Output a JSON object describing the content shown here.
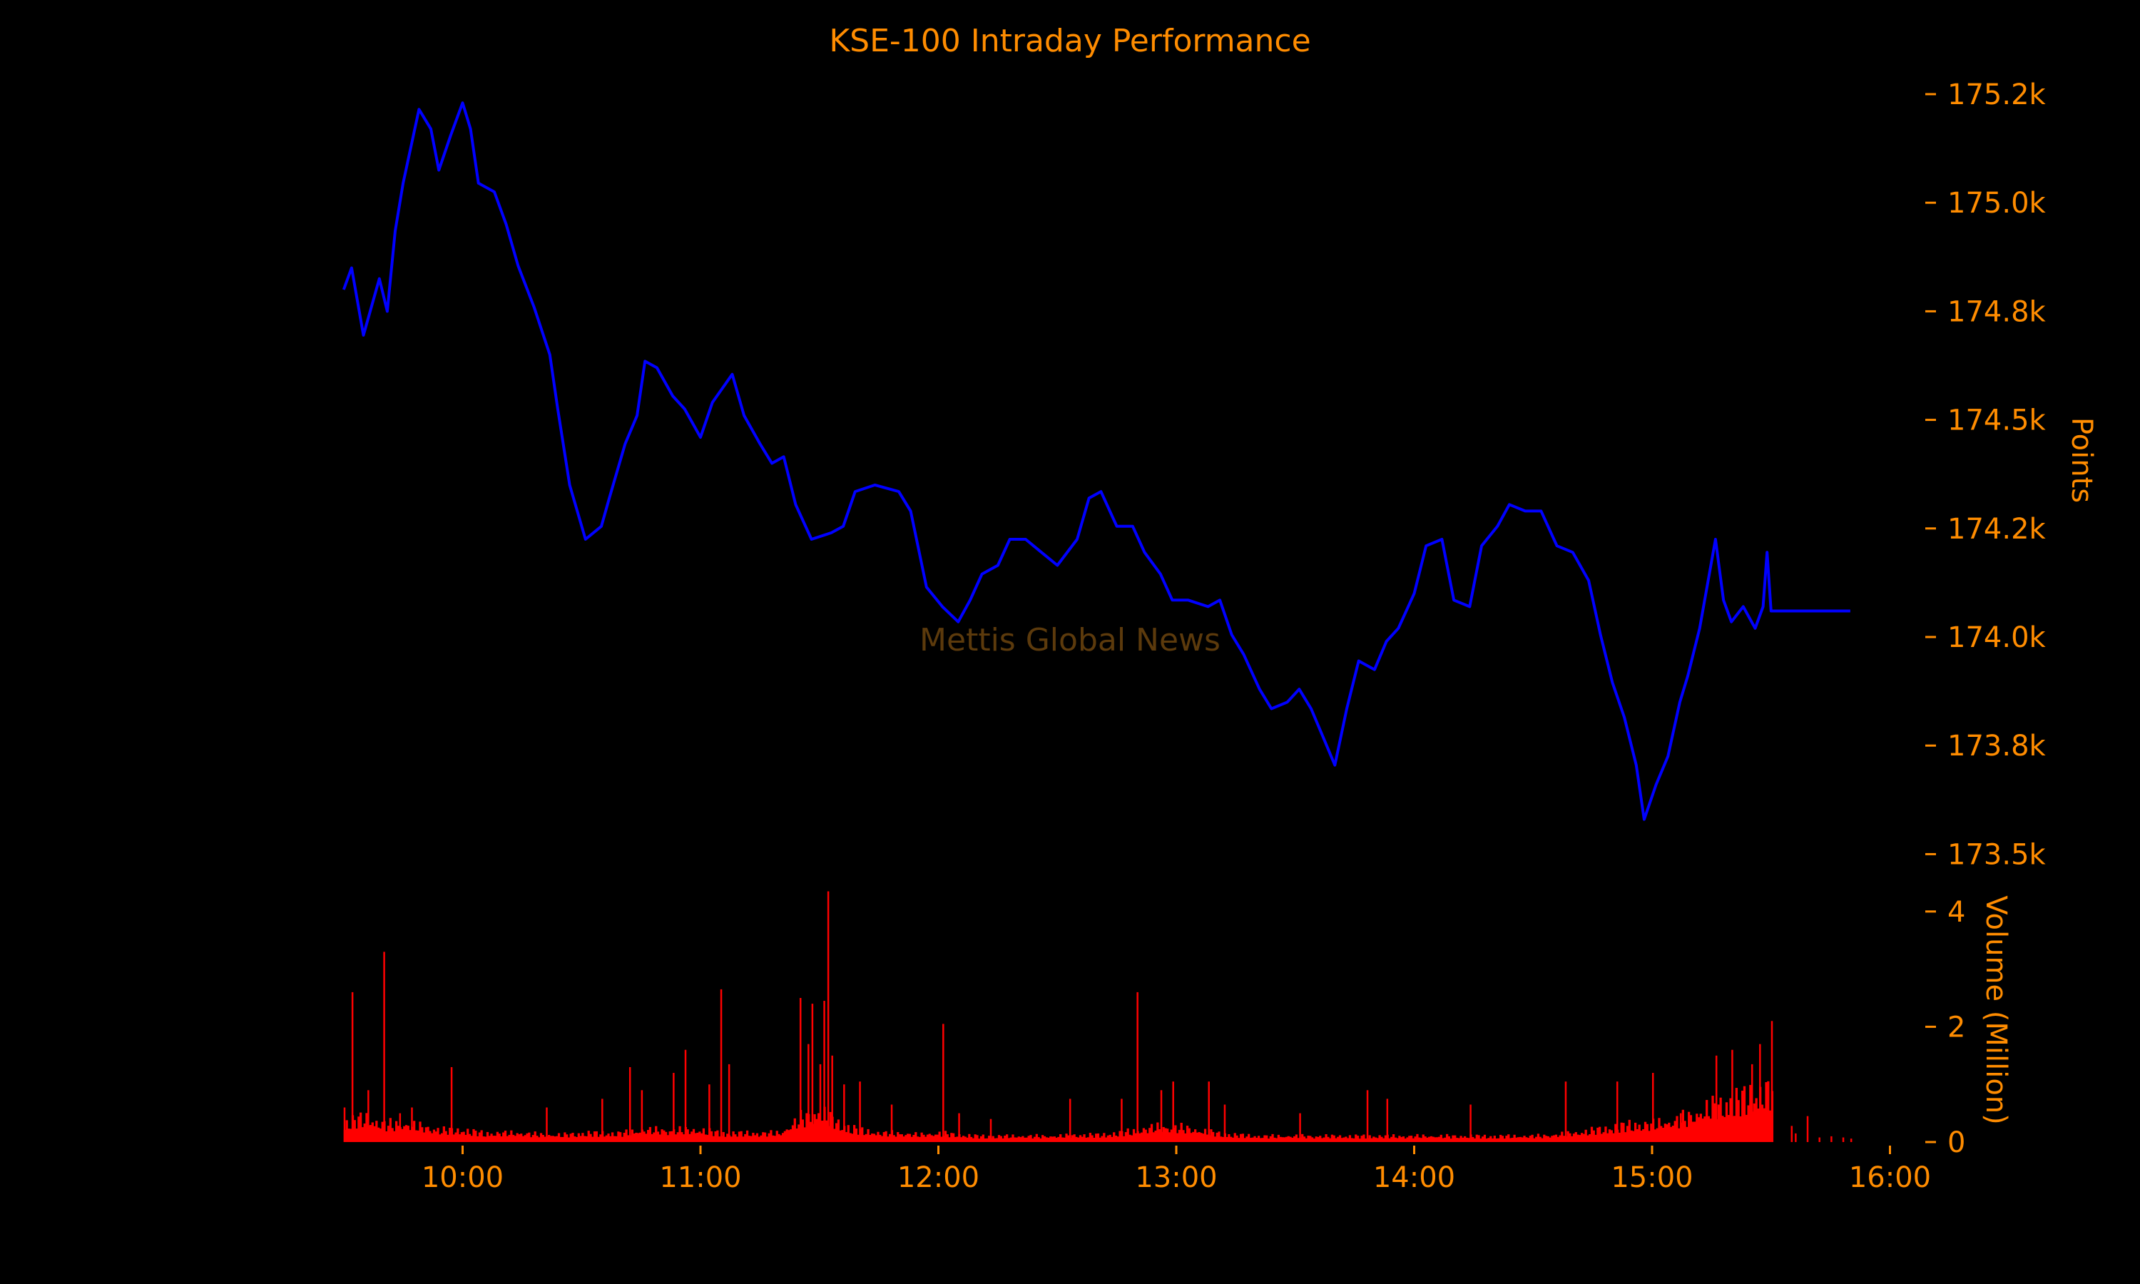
{
  "chart_data": {
    "type": "line",
    "title": "KSE-100 Intraday Performance",
    "watermark": "Mettis Global News",
    "xlabel": "",
    "ylabel": "Points",
    "y2label": "Volume (Million)",
    "x_ticks": [
      "10:00",
      "11:00",
      "12:00",
      "13:00",
      "14:00",
      "15:00",
      "16:00"
    ],
    "y_ticks": [
      {
        "value": 175250,
        "label": "175.2k"
      },
      {
        "value": 175000,
        "label": "175.0k"
      },
      {
        "value": 174750,
        "label": "174.8k"
      },
      {
        "value": 174500,
        "label": "174.5k"
      },
      {
        "value": 174250,
        "label": "174.2k"
      },
      {
        "value": 174000,
        "label": "174.0k"
      },
      {
        "value": 173750,
        "label": "173.8k"
      },
      {
        "value": 173500,
        "label": "173.5k"
      }
    ],
    "ylim": [
      173500,
      175250
    ],
    "volume_ticks": [
      {
        "value": 0,
        "label": "0"
      },
      {
        "value": 2,
        "label": "2"
      },
      {
        "value": 4,
        "label": "4"
      }
    ],
    "xlim": [
      "09:30",
      "16:00"
    ],
    "grid": false,
    "colors": {
      "background": "#000000",
      "text": "#ff8c00",
      "price": "#0000ff",
      "volume": "#ff0000",
      "watermark": "#5c3a0c"
    },
    "price": [
      [
        "09:30",
        174800
      ],
      [
        "09:32",
        174850
      ],
      [
        "09:35",
        174695
      ],
      [
        "09:39",
        174825
      ],
      [
        "09:41",
        174750
      ],
      [
        "09:43",
        174935
      ],
      [
        "09:45",
        175045
      ],
      [
        "09:49",
        175215
      ],
      [
        "09:52",
        175170
      ],
      [
        "09:54",
        175075
      ],
      [
        "09:57",
        175155
      ],
      [
        "10:00",
        175230
      ],
      [
        "10:02",
        175170
      ],
      [
        "10:04",
        175045
      ],
      [
        "10:08",
        175025
      ],
      [
        "10:11",
        174950
      ],
      [
        "10:14",
        174855
      ],
      [
        "10:18",
        174760
      ],
      [
        "10:22",
        174650
      ],
      [
        "10:24",
        174525
      ],
      [
        "10:27",
        174350
      ],
      [
        "10:31",
        174225
      ],
      [
        "10:35",
        174255
      ],
      [
        "10:37",
        174320
      ],
      [
        "10:41",
        174445
      ],
      [
        "10:44",
        174510
      ],
      [
        "10:46",
        174635
      ],
      [
        "10:49",
        174620
      ],
      [
        "10:53",
        174555
      ],
      [
        "10:56",
        174525
      ],
      [
        "11:00",
        174460
      ],
      [
        "11:03",
        174540
      ],
      [
        "11:08",
        174605
      ],
      [
        "11:11",
        174510
      ],
      [
        "11:15",
        174445
      ],
      [
        "11:18",
        174400
      ],
      [
        "11:21",
        174415
      ],
      [
        "11:24",
        174305
      ],
      [
        "11:28",
        174225
      ],
      [
        "11:33",
        174240
      ],
      [
        "11:36",
        174255
      ],
      [
        "11:39",
        174335
      ],
      [
        "11:44",
        174350
      ],
      [
        "11:50",
        174335
      ],
      [
        "11:53",
        174290
      ],
      [
        "11:57",
        174115
      ],
      [
        "12:01",
        174070
      ],
      [
        "12:05",
        174035
      ],
      [
        "12:08",
        174085
      ],
      [
        "12:11",
        174145
      ],
      [
        "12:15",
        174165
      ],
      [
        "12:18",
        174225
      ],
      [
        "12:22",
        174225
      ],
      [
        "12:26",
        174195
      ],
      [
        "12:30",
        174165
      ],
      [
        "12:35",
        174225
      ],
      [
        "12:38",
        174320
      ],
      [
        "12:41",
        174335
      ],
      [
        "12:45",
        174255
      ],
      [
        "12:49",
        174255
      ],
      [
        "12:52",
        174195
      ],
      [
        "12:56",
        174145
      ],
      [
        "12:59",
        174085
      ],
      [
        "13:03",
        174085
      ],
      [
        "13:08",
        174070
      ],
      [
        "13:11",
        174085
      ],
      [
        "13:14",
        174005
      ],
      [
        "13:17",
        173960
      ],
      [
        "13:21",
        173880
      ],
      [
        "13:24",
        173835
      ],
      [
        "13:28",
        173850
      ],
      [
        "13:31",
        173880
      ],
      [
        "13:34",
        173835
      ],
      [
        "13:37",
        173770
      ],
      [
        "13:40",
        173705
      ],
      [
        "13:43",
        173835
      ],
      [
        "13:46",
        173945
      ],
      [
        "13:50",
        173925
      ],
      [
        "13:53",
        173990
      ],
      [
        "13:56",
        174020
      ],
      [
        "14:00",
        174100
      ],
      [
        "14:03",
        174210
      ],
      [
        "14:07",
        174225
      ],
      [
        "14:10",
        174085
      ],
      [
        "14:14",
        174070
      ],
      [
        "14:17",
        174210
      ],
      [
        "14:21",
        174255
      ],
      [
        "14:24",
        174305
      ],
      [
        "14:28",
        174290
      ],
      [
        "14:32",
        174290
      ],
      [
        "14:36",
        174210
      ],
      [
        "14:40",
        174195
      ],
      [
        "14:44",
        174130
      ],
      [
        "14:47",
        174005
      ],
      [
        "14:50",
        173895
      ],
      [
        "14:53",
        173815
      ],
      [
        "14:56",
        173705
      ],
      [
        "14:58",
        173580
      ],
      [
        "15:01",
        173660
      ],
      [
        "15:04",
        173725
      ],
      [
        "15:07",
        173850
      ],
      [
        "15:09",
        173910
      ],
      [
        "15:12",
        174020
      ],
      [
        "15:16",
        174225
      ],
      [
        "15:18",
        174085
      ],
      [
        "15:20",
        174035
      ],
      [
        "15:23",
        174070
      ],
      [
        "15:26",
        174020
      ],
      [
        "15:28",
        174070
      ],
      [
        "15:29",
        174195
      ],
      [
        "15:30",
        174060
      ],
      [
        "15:50",
        174060
      ]
    ],
    "volume_base_start": "09:30",
    "volume_base_step_minutes": 5,
    "volume_base": [
      0.35,
      0.4,
      0.3,
      0.3,
      0.25,
      0.2,
      0.2,
      0.15,
      0.15,
      0.15,
      0.12,
      0.12,
      0.15,
      0.15,
      0.15,
      0.2,
      0.2,
      0.2,
      0.2,
      0.15,
      0.15,
      0.15,
      0.15,
      0.4,
      0.5,
      0.3,
      0.2,
      0.15,
      0.15,
      0.12,
      0.15,
      0.12,
      0.1,
      0.1,
      0.1,
      0.1,
      0.1,
      0.12,
      0.12,
      0.15,
      0.2,
      0.25,
      0.25,
      0.2,
      0.15,
      0.12,
      0.1,
      0.1,
      0.1,
      0.1,
      0.1,
      0.1,
      0.1,
      0.1,
      0.1,
      0.1,
      0.1,
      0.1,
      0.1,
      0.1,
      0.1,
      0.12,
      0.15,
      0.2,
      0.25,
      0.3,
      0.3,
      0.35,
      0.45,
      0.6,
      0.7,
      0.8,
      0.9
    ],
    "volume_spikes": [
      [
        "09:30",
        0.6
      ],
      [
        "09:32",
        2.6
      ],
      [
        "09:36",
        0.9
      ],
      [
        "09:40",
        3.3
      ],
      [
        "09:44",
        0.5
      ],
      [
        "09:47",
        0.6
      ],
      [
        "09:57",
        1.3
      ],
      [
        "10:21",
        0.6
      ],
      [
        "10:35",
        0.75
      ],
      [
        "10:42",
        1.3
      ],
      [
        "10:45",
        0.9
      ],
      [
        "10:53",
        1.2
      ],
      [
        "10:56",
        1.6
      ],
      [
        "11:02",
        1.0
      ],
      [
        "11:05",
        2.65
      ],
      [
        "11:07",
        1.35
      ],
      [
        "11:25",
        2.5
      ],
      [
        "11:27",
        1.7
      ],
      [
        "11:28",
        2.4
      ],
      [
        "11:30",
        1.35
      ],
      [
        "11:31",
        2.45
      ],
      [
        "11:32",
        4.35
      ],
      [
        "11:33",
        1.5
      ],
      [
        "11:36",
        1.0
      ],
      [
        "11:40",
        1.05
      ],
      [
        "11:48",
        0.65
      ],
      [
        "12:01",
        2.05
      ],
      [
        "12:05",
        0.5
      ],
      [
        "12:13",
        0.4
      ],
      [
        "12:33",
        0.75
      ],
      [
        "12:46",
        0.75
      ],
      [
        "12:50",
        2.6
      ],
      [
        "12:56",
        0.9
      ],
      [
        "12:59",
        1.05
      ],
      [
        "13:08",
        1.05
      ],
      [
        "13:12",
        0.65
      ],
      [
        "13:31",
        0.5
      ],
      [
        "13:48",
        0.9
      ],
      [
        "13:53",
        0.75
      ],
      [
        "14:14",
        0.65
      ],
      [
        "14:38",
        1.05
      ],
      [
        "14:51",
        1.05
      ],
      [
        "15:00",
        1.2
      ],
      [
        "15:07",
        0.5
      ],
      [
        "15:16",
        1.5
      ],
      [
        "15:20",
        1.6
      ],
      [
        "15:25",
        1.35
      ],
      [
        "15:27",
        1.7
      ],
      [
        "15:30",
        2.1
      ],
      [
        "15:35",
        0.28
      ],
      [
        "15:36",
        0.15
      ],
      [
        "15:39",
        0.45
      ],
      [
        "15:42",
        0.08
      ],
      [
        "15:45",
        0.1
      ],
      [
        "15:48",
        0.08
      ],
      [
        "15:50",
        0.06
      ]
    ]
  }
}
